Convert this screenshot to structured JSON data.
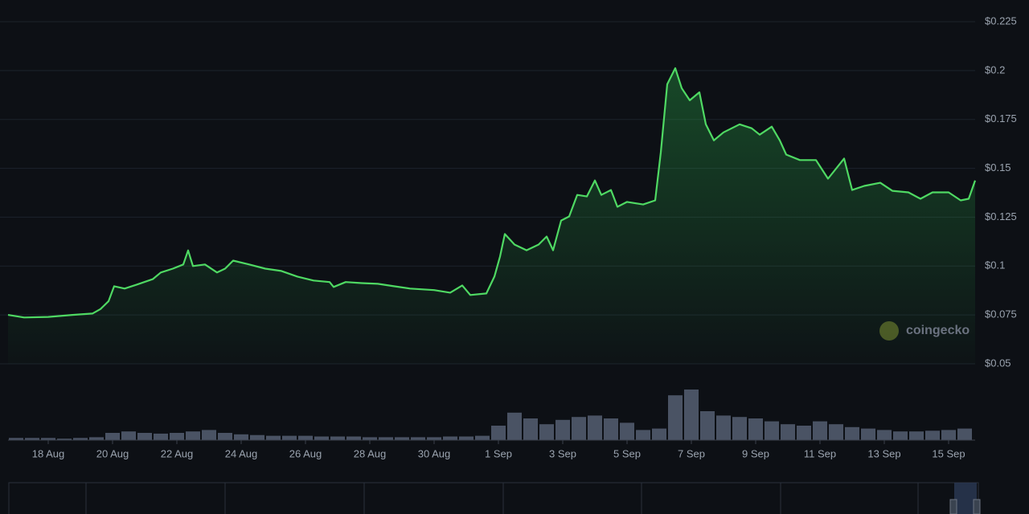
{
  "chart_data": {
    "type": "line",
    "x": [
      -1.25,
      -0.75,
      0,
      0.75,
      1.375,
      1.625,
      1.875,
      2.05,
      2.375,
      2.75,
      3.25,
      3.5,
      3.875,
      4.2,
      4.35,
      4.5,
      4.875,
      5.25,
      5.5,
      5.75,
      6.25,
      6.75,
      7.25,
      7.75,
      8.25,
      8.75,
      8.875,
      9.25,
      9.75,
      10.25,
      10.75,
      11.25,
      12,
      12.5,
      12.875,
      13.125,
      13.625,
      13.875,
      14.05,
      14.2,
      14.5,
      14.875,
      15.25,
      15.5,
      15.7,
      15.95,
      16.2,
      16.45,
      16.75,
      17,
      17.2,
      17.5,
      17.7,
      18,
      18.5,
      18.875,
      19.05,
      19.25,
      19.5,
      19.7,
      19.95,
      20.25,
      20.45,
      20.7,
      21,
      21.5,
      21.875,
      22.125,
      22.5,
      22.75,
      22.95,
      23.375,
      23.875,
      24.25,
      24.75,
      25,
      25.375,
      25.875,
      26.25,
      26.75,
      27.125,
      27.5,
      28,
      28.375,
      28.625,
      28.825
    ],
    "values": [
      0.075,
      0.0737,
      0.074,
      0.075,
      0.0757,
      0.078,
      0.082,
      0.0897,
      0.0885,
      0.0905,
      0.0933,
      0.0967,
      0.0987,
      0.1008,
      0.108,
      0.1,
      0.1008,
      0.0967,
      0.0987,
      0.1028,
      0.1008,
      0.0987,
      0.0975,
      0.0946,
      0.0926,
      0.0918,
      0.0893,
      0.0918,
      0.0913,
      0.0909,
      0.0897,
      0.0885,
      0.0877,
      0.0864,
      0.0901,
      0.0852,
      0.086,
      0.0946,
      0.1049,
      0.1164,
      0.111,
      0.1081,
      0.111,
      0.1151,
      0.1081,
      0.1233,
      0.1254,
      0.1364,
      0.1356,
      0.1438,
      0.1364,
      0.1389,
      0.1303,
      0.1328,
      0.1315,
      0.1336,
      0.1582,
      0.193,
      0.2012,
      0.191,
      0.1848,
      0.1889,
      0.1725,
      0.1643,
      0.1684,
      0.1725,
      0.1705,
      0.1672,
      0.1713,
      0.1643,
      0.157,
      0.1542,
      0.1542,
      0.1447,
      0.155,
      0.1389,
      0.141,
      0.1426,
      0.1385,
      0.1377,
      0.1344,
      0.1377,
      0.1377,
      0.1336,
      0.1344,
      0.1438
    ],
    "color": "#4fd963",
    "xlim": [
      -1.25,
      28.825
    ],
    "ylim": [
      0.05,
      0.225
    ],
    "xticks": [
      {
        "value": 0,
        "label": "18 Aug"
      },
      {
        "value": 2,
        "label": "20 Aug"
      },
      {
        "value": 4,
        "label": "22 Aug"
      },
      {
        "value": 6,
        "label": "24 Aug"
      },
      {
        "value": 8,
        "label": "26 Aug"
      },
      {
        "value": 10,
        "label": "28 Aug"
      },
      {
        "value": 12,
        "label": "30 Aug"
      },
      {
        "value": 14,
        "label": "1 Sep"
      },
      {
        "value": 16,
        "label": "3 Sep"
      },
      {
        "value": 18,
        "label": "5 Sep"
      },
      {
        "value": 20,
        "label": "7 Sep"
      },
      {
        "value": 22,
        "label": "9 Sep"
      },
      {
        "value": 24,
        "label": "11 Sep"
      },
      {
        "value": 26,
        "label": "13 Sep"
      },
      {
        "value": 28,
        "label": "15 Sep"
      }
    ],
    "yticks": [
      {
        "value": 0.05,
        "label": "$0.05"
      },
      {
        "value": 0.075,
        "label": "$0.075"
      },
      {
        "value": 0.1,
        "label": "$0.1"
      },
      {
        "value": 0.125,
        "label": "$0.125"
      },
      {
        "value": 0.15,
        "label": "$0.15"
      },
      {
        "value": 0.175,
        "label": "$0.175"
      },
      {
        "value": 0.2,
        "label": "$0.2"
      },
      {
        "value": 0.225,
        "label": "$0.225"
      }
    ],
    "grid": true,
    "watermark": "coingecko",
    "volume": {
      "color": "#4a5364",
      "ylim": [
        0,
        100
      ],
      "x": [
        -1,
        -0.5,
        0,
        0.5,
        1,
        1.5,
        2,
        2.5,
        3,
        3.5,
        4,
        4.5,
        5,
        5.5,
        6,
        6.5,
        7,
        7.5,
        8,
        8.5,
        9,
        9.5,
        10,
        10.5,
        11,
        11.5,
        12,
        12.5,
        13,
        13.5,
        14,
        14.5,
        15,
        15.5,
        16,
        16.5,
        17,
        17.5,
        18,
        18.5,
        19,
        19.5,
        20,
        20.5,
        21,
        21.5,
        22,
        22.5,
        23,
        23.5,
        24,
        24.5,
        25,
        25.5,
        26,
        26.5,
        27,
        27.5,
        28,
        28.5
      ],
      "values": [
        3,
        3,
        3,
        2,
        3,
        4,
        10,
        12,
        10,
        9,
        10,
        12,
        14,
        10,
        8,
        7,
        6,
        6,
        6,
        5,
        5,
        5,
        4,
        4,
        4,
        4,
        4,
        5,
        5,
        6,
        20,
        38,
        30,
        22,
        28,
        32,
        34,
        30,
        24,
        14,
        16,
        62,
        70,
        40,
        34,
        32,
        30,
        26,
        22,
        20,
        26,
        22,
        18,
        16,
        14,
        12,
        12,
        13,
        14,
        16
      ]
    }
  }
}
